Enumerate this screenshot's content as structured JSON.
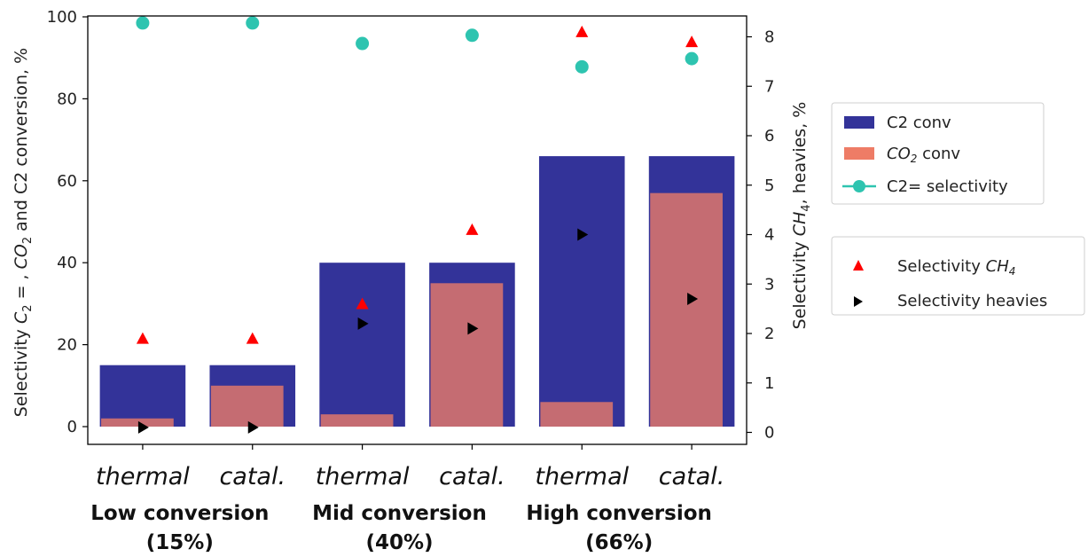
{
  "chart_data": {
    "type": "bar",
    "categories": [
      "thermal",
      "catal.",
      "thermal",
      "catal.",
      "thermal",
      "catal."
    ],
    "groups": [
      {
        "label": "Low conversion",
        "sub": "(15%)"
      },
      {
        "label": "Mid conversion",
        "sub": "(40%)"
      },
      {
        "label": "High conversion",
        "sub": "(66%)"
      }
    ],
    "ylabel_left": {
      "pre": "Selectivity ",
      "c": "C",
      "csub": "2",
      "mid": " = , ",
      "co": "CO",
      "cosub": "2",
      "post": " and C2 conversion, %"
    },
    "ylabel_right": {
      "pre": "Selectivity ",
      "ch": "CH",
      "chsub": "4",
      "post": ", heavies, %"
    },
    "ylim_left": [
      0,
      100
    ],
    "ylim_right": [
      -0.3,
      8.3
    ],
    "yticks_left": [
      "0",
      "20",
      "40",
      "60",
      "80",
      "100"
    ],
    "yticks_right": [
      "0",
      "1",
      "2",
      "3",
      "4",
      "5",
      "6",
      "7",
      "8"
    ],
    "series": [
      {
        "name": "C2 conv",
        "axis": "left",
        "kind": "bar",
        "color": "#333399",
        "values": [
          15,
          15,
          40,
          40,
          66,
          66
        ]
      },
      {
        "name_parts": {
          "m": "CO",
          "sub": "2",
          "post": " conv"
        },
        "axis": "left",
        "kind": "bar",
        "color": "#ee7c66",
        "values": [
          2,
          10,
          3,
          35,
          6,
          57
        ]
      },
      {
        "name": "C2= selectivity",
        "axis": "left",
        "kind": "marker",
        "marker": "circle",
        "color": "#2ec4b0",
        "values": [
          98.5,
          98.5,
          93.5,
          95.5,
          87.8,
          89.8
        ]
      },
      {
        "name_parts": {
          "m": "Selectivity ",
          "it": "CH",
          "sub": "4"
        },
        "axis": "right",
        "kind": "marker",
        "marker": "triangle-up",
        "color": "#ff0000",
        "values": [
          1.9,
          1.9,
          2.6,
          4.1,
          8.1,
          7.9
        ]
      },
      {
        "name": "Selectivity heavies",
        "axis": "right",
        "kind": "marker",
        "marker": "triangle-right",
        "color": "#000000",
        "values": [
          0.1,
          0.1,
          2.2,
          2.1,
          4.0,
          2.7
        ]
      }
    ]
  }
}
